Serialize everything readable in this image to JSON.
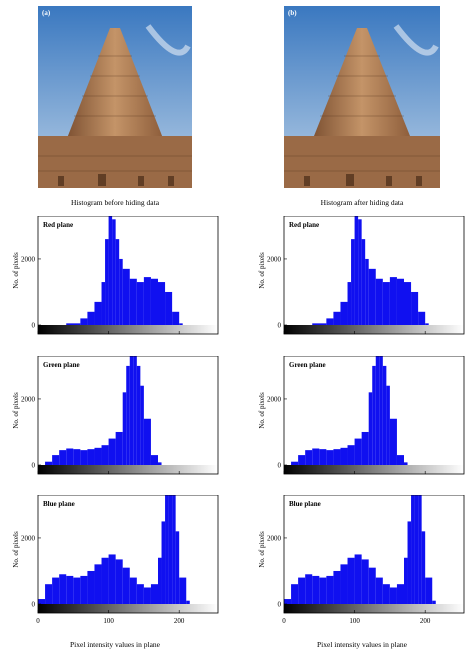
{
  "images": [
    {
      "tag": "(a)",
      "caption": "Histogram before hiding data"
    },
    {
      "tag": "(b)",
      "caption": "Histogram after hiding data"
    }
  ],
  "xlabel": "Pixel intensity values in plane",
  "colors": {
    "bar": "#1010f0",
    "sky_top": "#3a78c0",
    "sky_bottom": "#b8cfe6",
    "stone": "#a0704a"
  },
  "chart_data": [
    {
      "type": "bar",
      "column": "before",
      "title": "Red plane",
      "ylabel": "No. of pixels",
      "xlim": [
        0,
        255
      ],
      "ylim": [
        0,
        3300
      ],
      "yticks": [
        0,
        2000
      ],
      "xticks": [
        0,
        100,
        200
      ],
      "series": [
        {
          "name": "Red plane",
          "x": [
            40,
            60,
            70,
            80,
            90,
            95,
            100,
            105,
            110,
            115,
            120,
            130,
            140,
            150,
            160,
            170,
            180,
            190,
            200
          ],
          "values": [
            50,
            200,
            400,
            700,
            1300,
            2600,
            3300,
            3200,
            2600,
            2000,
            1700,
            1400,
            1300,
            1450,
            1400,
            1300,
            1000,
            400,
            50
          ]
        }
      ]
    },
    {
      "type": "bar",
      "column": "before",
      "title": "Green plane",
      "ylabel": "No. of pixels",
      "xlim": [
        0,
        255
      ],
      "ylim": [
        0,
        3300
      ],
      "yticks": [
        0,
        2000
      ],
      "xticks": [
        0,
        100,
        200
      ],
      "series": [
        {
          "name": "Green plane",
          "x": [
            10,
            20,
            30,
            40,
            50,
            60,
            70,
            80,
            90,
            100,
            110,
            120,
            125,
            130,
            135,
            140,
            145,
            150,
            160,
            170
          ],
          "values": [
            100,
            300,
            450,
            500,
            480,
            450,
            480,
            520,
            600,
            800,
            1000,
            2200,
            3000,
            3300,
            3300,
            3000,
            2400,
            1400,
            300,
            80
          ]
        }
      ]
    },
    {
      "type": "bar",
      "column": "before",
      "title": "Blue plane",
      "ylabel": "No. of pixels",
      "xlim": [
        0,
        255
      ],
      "ylim": [
        0,
        3300
      ],
      "yticks": [
        0,
        2000
      ],
      "xticks": [
        0,
        100,
        200
      ],
      "series": [
        {
          "name": "Blue plane",
          "x": [
            0,
            10,
            20,
            30,
            40,
            50,
            60,
            70,
            80,
            90,
            100,
            110,
            120,
            130,
            140,
            150,
            160,
            170,
            175,
            180,
            185,
            190,
            195,
            200,
            210
          ],
          "values": [
            150,
            600,
            800,
            900,
            850,
            800,
            850,
            1000,
            1200,
            1400,
            1500,
            1350,
            1100,
            800,
            600,
            500,
            600,
            1400,
            2500,
            3300,
            3300,
            3300,
            2200,
            800,
            100
          ]
        }
      ]
    },
    {
      "type": "bar",
      "column": "after",
      "title": "Red plane",
      "ylabel": "No. of pixels",
      "xlim": [
        0,
        255
      ],
      "ylim": [
        0,
        3300
      ],
      "yticks": [
        0,
        2000
      ],
      "xticks": [
        0,
        100,
        200
      ],
      "series": [
        {
          "name": "Red plane",
          "x": [
            40,
            60,
            70,
            80,
            90,
            95,
            100,
            105,
            110,
            115,
            120,
            130,
            140,
            150,
            160,
            170,
            180,
            190,
            200
          ],
          "values": [
            50,
            200,
            400,
            700,
            1300,
            2600,
            3300,
            3200,
            2600,
            2000,
            1700,
            1400,
            1300,
            1450,
            1400,
            1300,
            1000,
            400,
            50
          ]
        }
      ]
    },
    {
      "type": "bar",
      "column": "after",
      "title": "Green plane",
      "ylabel": "No. of pixels",
      "xlim": [
        0,
        255
      ],
      "ylim": [
        0,
        3300
      ],
      "yticks": [
        0,
        2000
      ],
      "xticks": [
        0,
        100,
        200
      ],
      "series": [
        {
          "name": "Green plane",
          "x": [
            10,
            20,
            30,
            40,
            50,
            60,
            70,
            80,
            90,
            100,
            110,
            120,
            125,
            130,
            135,
            140,
            145,
            150,
            160,
            170
          ],
          "values": [
            100,
            300,
            450,
            500,
            480,
            450,
            480,
            520,
            600,
            800,
            1000,
            2200,
            3000,
            3300,
            3300,
            3000,
            2400,
            1400,
            300,
            80
          ]
        }
      ]
    },
    {
      "type": "bar",
      "column": "after",
      "title": "Blue plane",
      "ylabel": "No. of pixels",
      "xlim": [
        0,
        255
      ],
      "ylim": [
        0,
        3300
      ],
      "yticks": [
        0,
        2000
      ],
      "xticks": [
        0,
        100,
        200
      ],
      "series": [
        {
          "name": "Blue plane",
          "x": [
            0,
            10,
            20,
            30,
            40,
            50,
            60,
            70,
            80,
            90,
            100,
            110,
            120,
            130,
            140,
            150,
            160,
            170,
            175,
            180,
            185,
            190,
            195,
            200,
            210
          ],
          "values": [
            150,
            600,
            800,
            900,
            850,
            800,
            850,
            1000,
            1200,
            1400,
            1500,
            1350,
            1100,
            800,
            600,
            500,
            600,
            1400,
            2500,
            3300,
            3300,
            3300,
            2200,
            800,
            100
          ]
        }
      ]
    }
  ]
}
